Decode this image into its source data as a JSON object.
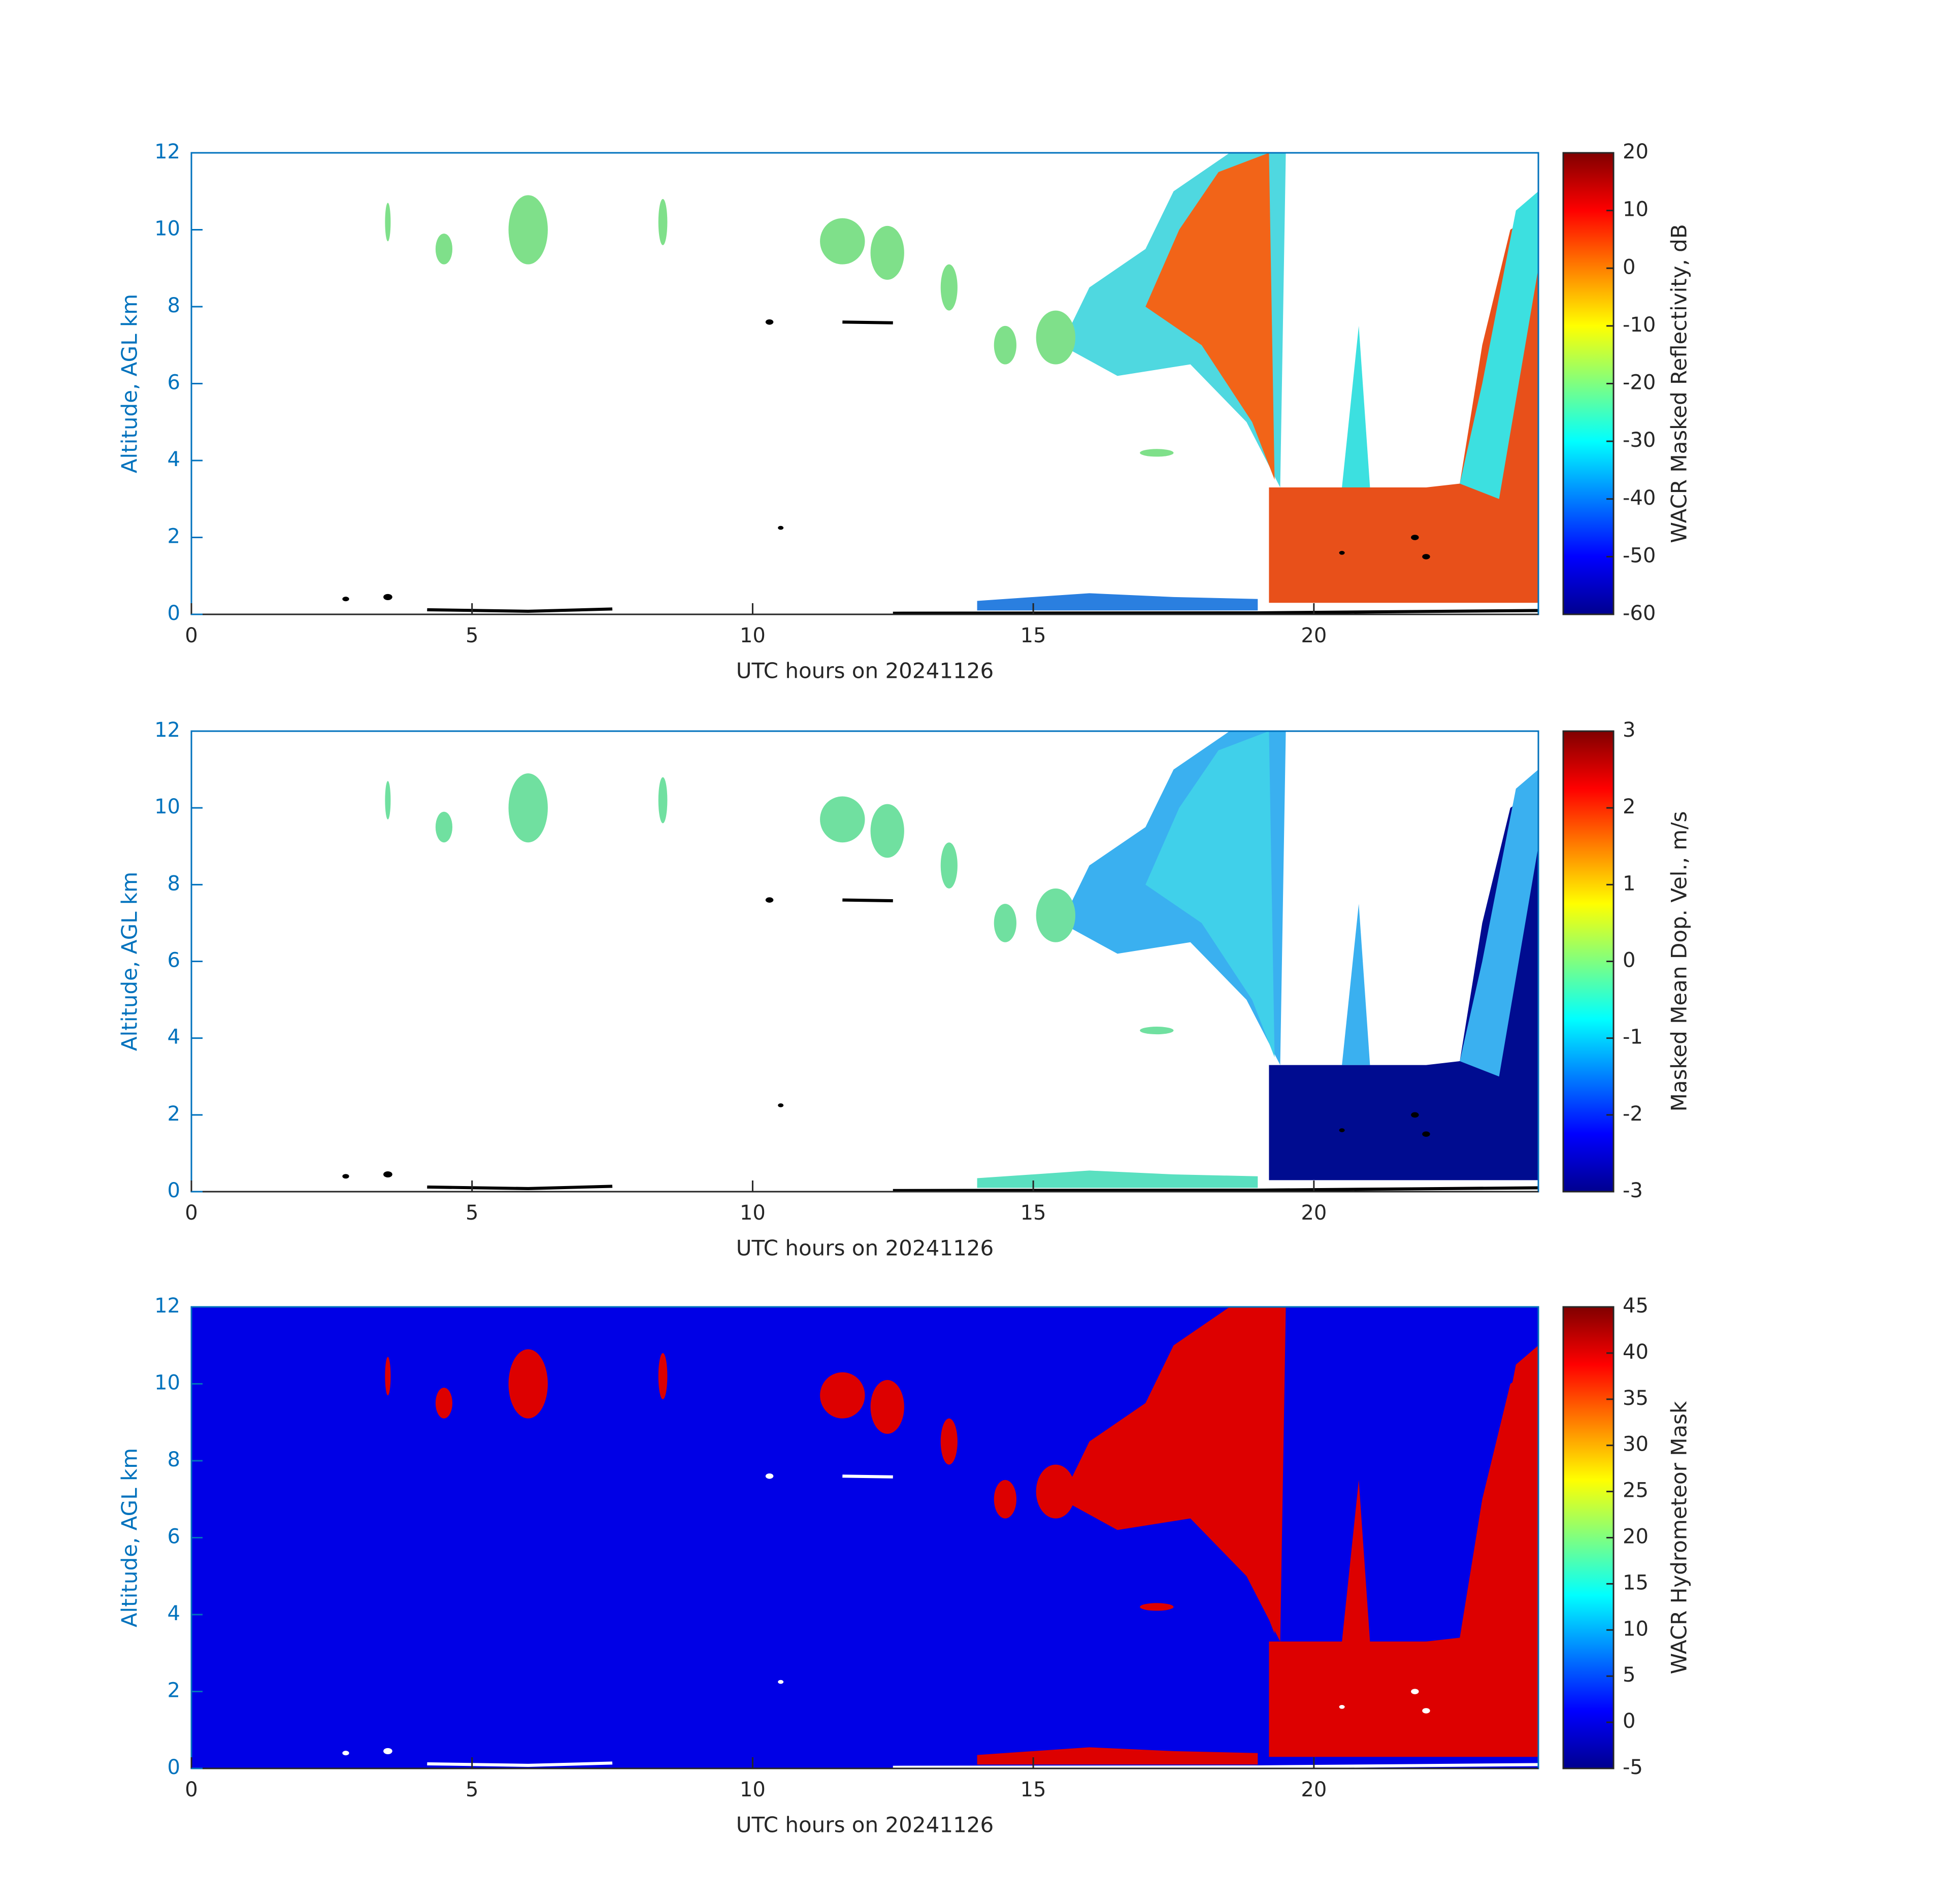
{
  "chart_data": [
    {
      "type": "heatmap",
      "xlabel": "UTC hours on 20241126",
      "ylabel": "Altitude, AGL km",
      "colorbar_label": "WACR Masked Reflectivity, dB",
      "colormap": "jet",
      "xlim": [
        0,
        24
      ],
      "xticks": [
        0,
        5,
        10,
        15,
        20
      ],
      "ylim": [
        0,
        12
      ],
      "yticks": [
        0,
        2,
        4,
        6,
        8,
        10,
        12
      ],
      "clim": [
        -60,
        20
      ],
      "cticks": [
        -60,
        -50,
        -40,
        -30,
        -20,
        -10,
        0,
        10,
        20
      ]
    },
    {
      "type": "heatmap",
      "xlabel": "UTC hours on 20241126",
      "ylabel": "Altitude, AGL km",
      "colorbar_label": "Masked Mean Dop. Vel., m/s",
      "colormap": "jet",
      "xlim": [
        0,
        24
      ],
      "xticks": [
        0,
        5,
        10,
        15,
        20
      ],
      "ylim": [
        0,
        12
      ],
      "yticks": [
        0,
        2,
        4,
        6,
        8,
        10,
        12
      ],
      "clim": [
        -3,
        3
      ],
      "cticks": [
        -3,
        -2,
        -1,
        0,
        1,
        2,
        3
      ]
    },
    {
      "type": "heatmap",
      "xlabel": "UTC hours on 20241126",
      "ylabel": "Altitude, AGL km",
      "colorbar_label": "WACR Hydrometeor Mask",
      "colormap": "jet",
      "xlim": [
        0,
        24
      ],
      "xticks": [
        0,
        5,
        10,
        15,
        20
      ],
      "ylim": [
        0,
        12
      ],
      "yticks": [
        0,
        2,
        4,
        6,
        8,
        10,
        12
      ],
      "clim": [
        -5,
        45
      ],
      "cticks": [
        -5,
        0,
        5,
        10,
        15,
        20,
        25,
        30,
        35,
        40,
        45
      ]
    }
  ]
}
